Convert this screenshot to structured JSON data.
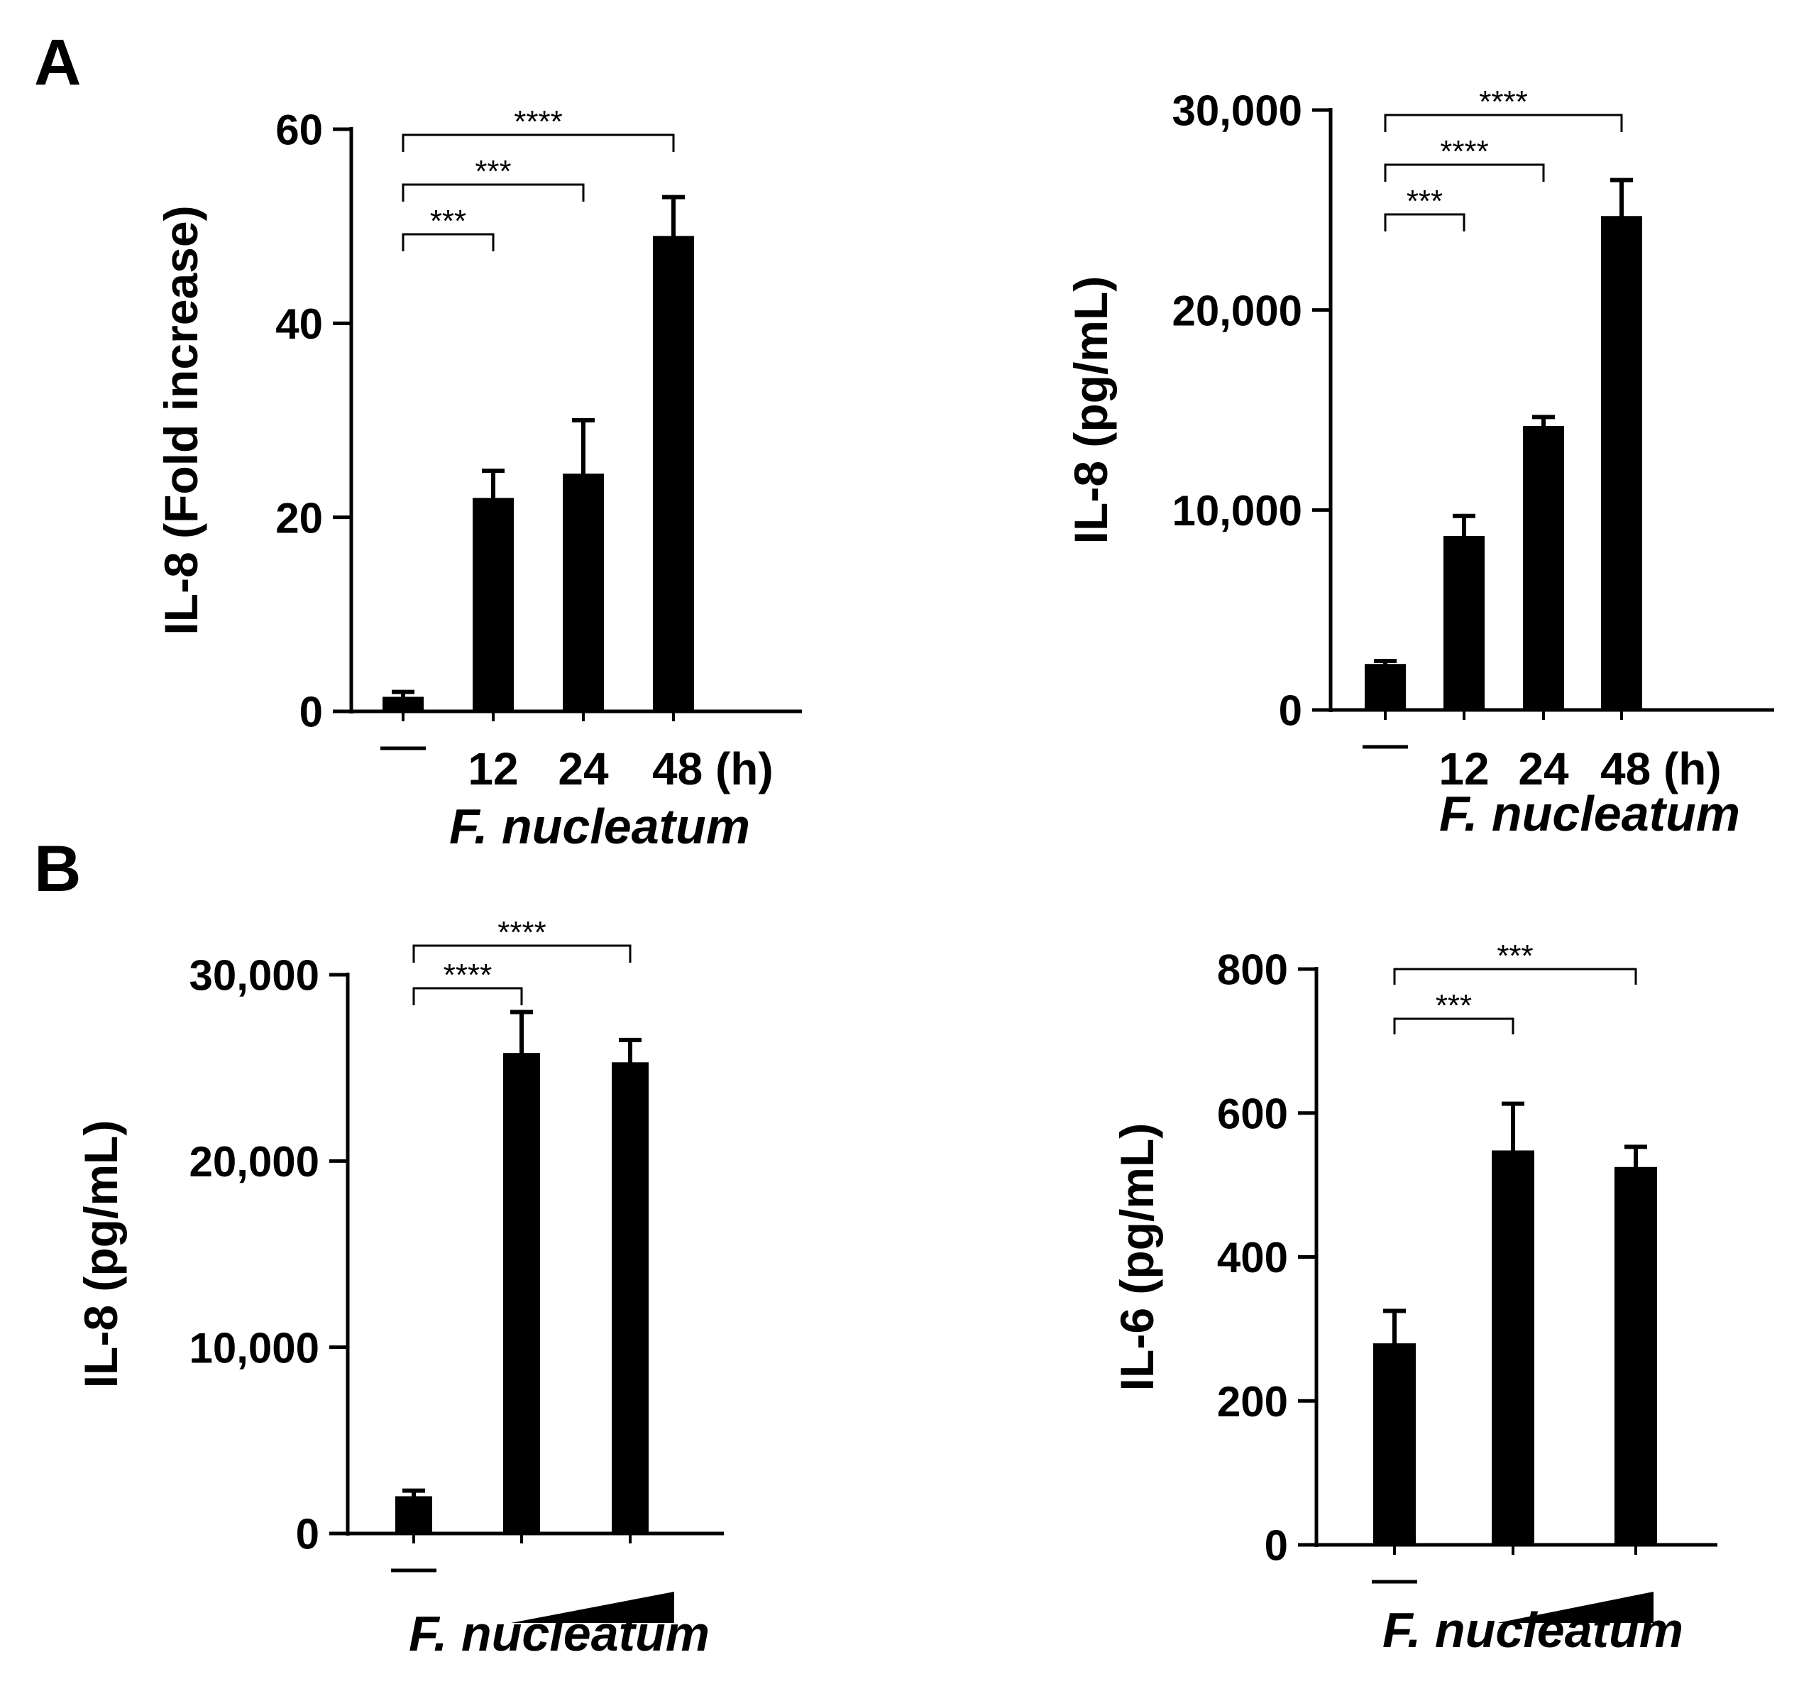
{
  "panel_labels": [
    "A",
    "B"
  ],
  "chart_data": [
    {
      "type": "bar",
      "panel": "A",
      "title": "",
      "categories": [
        "—",
        "12",
        "24",
        "48 (h)"
      ],
      "values": [
        1.5,
        22,
        24.5,
        49
      ],
      "errors": [
        0.5,
        2.8,
        5.5,
        4
      ],
      "xlabel": "F. nucleatum",
      "ylabel": "IL-8 (Fold increase)",
      "ylim": [
        0,
        60
      ],
      "yticks": [
        0,
        20,
        40,
        60
      ],
      "ytick_labels": [
        "0",
        "20",
        "40",
        "60"
      ],
      "grid": false,
      "significance": [
        {
          "from": 0,
          "to": 1,
          "label": "***"
        },
        {
          "from": 0,
          "to": 2,
          "label": "***"
        },
        {
          "from": 0,
          "to": 3,
          "label": "****"
        }
      ]
    },
    {
      "type": "bar",
      "panel": "A",
      "title": "",
      "categories": [
        "—",
        "12",
        "24",
        "48 (h)"
      ],
      "values": [
        2300,
        8700,
        14200,
        24700
      ],
      "errors": [
        150,
        1000,
        450,
        1800
      ],
      "xlabel": "F. nucleatum",
      "ylabel": "IL-8 (pg/mL)",
      "ylim": [
        0,
        30000
      ],
      "yticks": [
        0,
        10000,
        20000,
        30000
      ],
      "ytick_labels": [
        "0",
        "10,000",
        "20,000",
        "30,000"
      ],
      "grid": false,
      "significance": [
        {
          "from": 0,
          "to": 1,
          "label": "***"
        },
        {
          "from": 0,
          "to": 2,
          "label": "****"
        },
        {
          "from": 0,
          "to": 3,
          "label": "****"
        }
      ]
    },
    {
      "type": "bar",
      "panel": "B",
      "title": "",
      "categories": [
        "—",
        "",
        ""
      ],
      "dose_ramp": true,
      "values": [
        2000,
        25800,
        25300
      ],
      "errors": [
        300,
        2200,
        1200
      ],
      "xlabel": "F. nucleatum",
      "ylabel": "IL-8 (pg/mL)",
      "ylim": [
        0,
        30000
      ],
      "yticks": [
        0,
        10000,
        20000,
        30000
      ],
      "ytick_labels": [
        "0",
        "10,000",
        "20,000",
        "30,000"
      ],
      "grid": false,
      "significance": [
        {
          "from": 0,
          "to": 1,
          "label": "****"
        },
        {
          "from": 0,
          "to": 2,
          "label": "****"
        }
      ]
    },
    {
      "type": "bar",
      "panel": "B",
      "title": "",
      "categories": [
        "—",
        "",
        ""
      ],
      "dose_ramp": true,
      "values": [
        280,
        548,
        525
      ],
      "errors": [
        45,
        65,
        28
      ],
      "xlabel": "F. nucleatum",
      "ylabel": "IL-6 (pg/mL)",
      "ylim": [
        0,
        800
      ],
      "yticks": [
        0,
        200,
        400,
        600,
        800
      ],
      "ytick_labels": [
        "0",
        "200",
        "400",
        "600",
        "800"
      ],
      "grid": false,
      "significance": [
        {
          "from": 0,
          "to": 1,
          "label": "***"
        },
        {
          "from": 0,
          "to": 2,
          "label": "***"
        }
      ]
    }
  ]
}
